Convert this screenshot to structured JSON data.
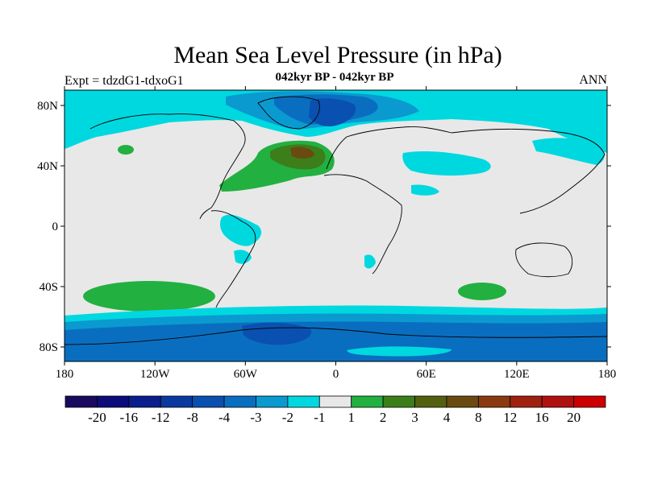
{
  "title": "Mean Sea Level Pressure (in hPa)",
  "subtitle_center": "042kyr BP - 042kyr BP",
  "subtitle_left": "Expt = tdzdG1-tdxoG1",
  "subtitle_right": "ANN",
  "lat_ticks": [
    "80N",
    "40N",
    "0",
    "40S",
    "80S"
  ],
  "lon_ticks": [
    "180",
    "120W",
    "60W",
    "0",
    "60E",
    "120E",
    "180"
  ],
  "colorbar": {
    "labels": [
      "-20",
      "-16",
      "-12",
      "-8",
      "-4",
      "-3",
      "-2",
      "-1",
      "1",
      "2",
      "3",
      "4",
      "8",
      "12",
      "16",
      "20"
    ],
    "colors": [
      "#1a0a5e",
      "#0b0b7a",
      "#0a1e8c",
      "#0a3aa0",
      "#0a50b0",
      "#0a6ec0",
      "#0a9ad0",
      "#00d8e0",
      "#e8e8e8",
      "#22b040",
      "#3c7e1a",
      "#546010",
      "#6a4a10",
      "#8a3a10",
      "#a02010",
      "#b01010",
      "#cc0000"
    ]
  },
  "colors": {
    "neutral": "#e8e8e8",
    "light_cyan": "#00d8e0",
    "mid_blue": "#0a9ad0",
    "blue": "#0a6ec0",
    "dark_blue": "#0a50b0",
    "deep_blue": "#0a3aa0",
    "green": "#22b040",
    "dark_green": "#3c7e1a",
    "olive": "#546010",
    "brown": "#6a4a10"
  }
}
